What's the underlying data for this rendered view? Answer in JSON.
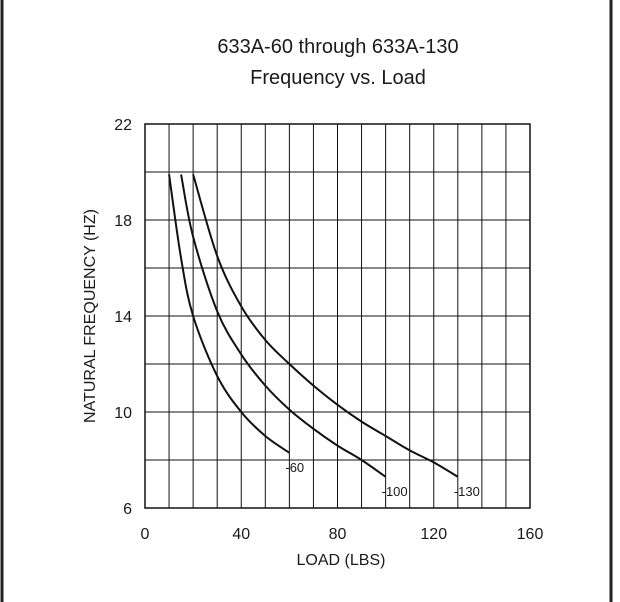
{
  "chart_data": {
    "type": "line",
    "title": "633A-60 through 633A-130",
    "subtitle": "Frequency vs. Load",
    "xlabel": "LOAD (LBS)",
    "ylabel": "NATURAL FREQUENCY (HZ)",
    "xlim": [
      0,
      160
    ],
    "ylim": [
      6,
      22
    ],
    "xticks": [
      0,
      40,
      80,
      120,
      160
    ],
    "yticks": [
      6,
      10,
      14,
      18,
      22
    ],
    "grid": true,
    "legend": "none",
    "series": [
      {
        "name": "-60",
        "x": [
          10,
          15,
          20,
          30,
          40,
          50,
          60
        ],
        "y": [
          19.9,
          16.4,
          14.0,
          11.5,
          10.0,
          9.0,
          8.3
        ]
      },
      {
        "name": "-100",
        "x": [
          15,
          20,
          30,
          40,
          50,
          60,
          70,
          80,
          90,
          100
        ],
        "y": [
          19.9,
          17.3,
          14.2,
          12.4,
          11.1,
          10.1,
          9.3,
          8.6,
          8.0,
          7.3
        ]
      },
      {
        "name": "-130",
        "x": [
          20,
          30,
          40,
          50,
          60,
          70,
          80,
          90,
          100,
          110,
          120,
          130
        ],
        "y": [
          19.9,
          16.5,
          14.4,
          13.0,
          12.0,
          11.1,
          10.3,
          9.6,
          9.0,
          8.4,
          7.9,
          7.3
        ]
      }
    ],
    "colors": {
      "line": "#111111",
      "grid": "#111111",
      "text": "#1a1a1a",
      "background": "#ffffff"
    }
  }
}
